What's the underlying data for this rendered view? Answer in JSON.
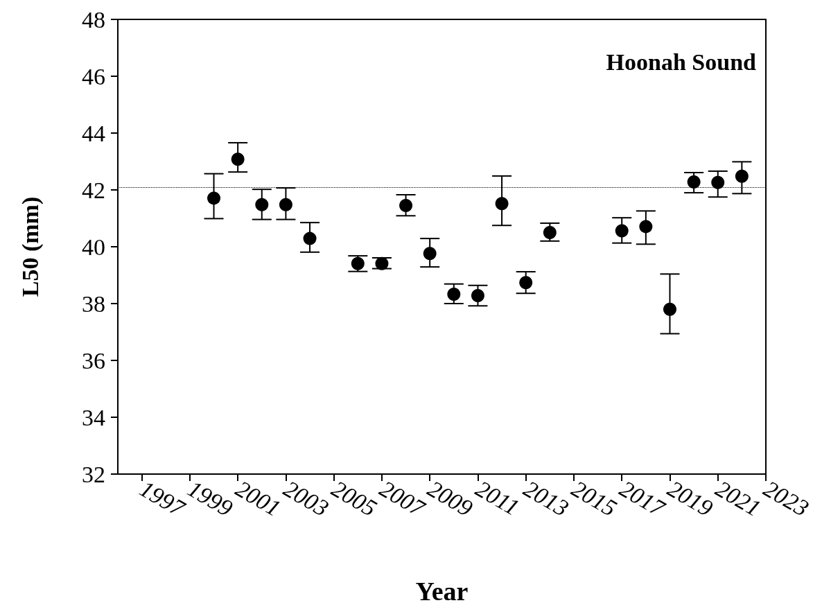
{
  "chart_data": {
    "type": "scatter",
    "xlabel": "Year",
    "ylabel": "L50 (mm)",
    "annotations": [
      "Hoonah Sound"
    ],
    "x": [
      2000,
      2001,
      2002,
      2003,
      2004,
      2006,
      2007,
      2008,
      2009,
      2010,
      2011,
      2012,
      2013,
      2014,
      2017,
      2018,
      2019,
      2020,
      2021,
      2022
    ],
    "series": [
      {
        "color": "#000000",
        "values": [
          41.71,
          43.08,
          41.48,
          41.48,
          40.29,
          39.41,
          39.41,
          41.45,
          39.76,
          38.33,
          38.28,
          41.52,
          38.74,
          40.5,
          40.56,
          40.71,
          37.8,
          42.28,
          42.26,
          42.48
        ],
        "errors": [
          [
            40.99,
            42.57
          ],
          [
            42.63,
            43.66
          ],
          [
            40.96,
            42.02
          ],
          [
            40.96,
            42.07
          ],
          [
            39.81,
            40.85
          ],
          [
            39.13,
            39.68
          ],
          [
            39.23,
            39.61
          ],
          [
            41.09,
            41.83
          ],
          [
            39.29,
            40.29
          ],
          [
            38.0,
            38.69
          ],
          [
            37.92,
            38.64
          ],
          [
            40.75,
            42.49
          ],
          [
            38.36,
            39.12
          ],
          [
            40.2,
            40.83
          ],
          [
            40.13,
            41.02
          ],
          [
            40.09,
            41.26
          ],
          [
            36.94,
            39.04
          ],
          [
            41.9,
            42.61
          ],
          [
            41.75,
            42.66
          ],
          [
            41.87,
            42.99
          ]
        ]
      }
    ],
    "xlim": [
      1996,
      2023
    ],
    "xticks": [
      1997,
      1999,
      2001,
      2003,
      2005,
      2007,
      2009,
      2011,
      2013,
      2015,
      2017,
      2019,
      2021,
      2023
    ],
    "ylim": [
      32,
      48
    ],
    "yticks": [
      32,
      34,
      36,
      38,
      40,
      42,
      44,
      46,
      48
    ],
    "ref_lines": [
      {
        "axis": "y",
        "value": 42.1,
        "line_style": "dotted",
        "color": "#000000"
      }
    ],
    "marker": "circle",
    "grid": false
  }
}
